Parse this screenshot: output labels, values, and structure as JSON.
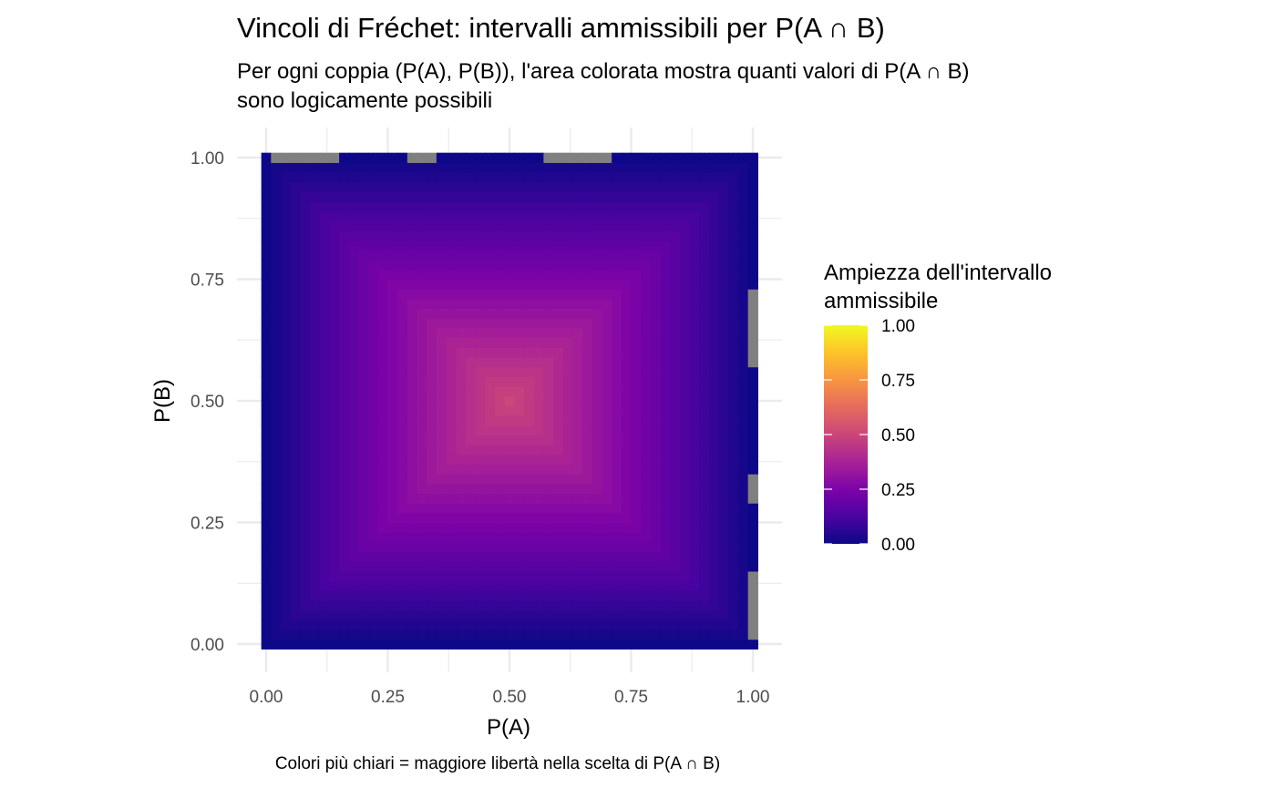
{
  "chart_data": {
    "type": "heatmap",
    "title": "Vincoli di Fréchet: intervalli ammissibili per P(A ∩ B)",
    "subtitle_lines": [
      "Per ogni coppia (P(A), P(B)), l'area colorata mostra quanti valori di P(A ∩ B)",
      "sono logicamente possibili"
    ],
    "xlabel": "P(A)",
    "ylabel": "P(B)",
    "caption": "Colori più chiari = maggiore libertà nella scelta di P(A ∩ B)",
    "xlim": [
      0,
      1
    ],
    "ylim": [
      0,
      1
    ],
    "x_ticks": [
      "0.00",
      "0.25",
      "0.50",
      "0.75",
      "1.00"
    ],
    "y_ticks": [
      "0.00",
      "0.25",
      "0.50",
      "0.75",
      "1.00"
    ],
    "grid": true,
    "grid_step": 0.02,
    "value_formula": "min(P(A), P(B)) - max(0, P(A) + P(B) - 1)",
    "value_range": [
      0,
      0.5
    ],
    "colorscale": "plasma",
    "na_color": "#808080",
    "missing_cells": {
      "top_row_x_ranges": [
        [
          0.02,
          0.14
        ],
        [
          0.3,
          0.34
        ],
        [
          0.58,
          0.7
        ]
      ],
      "right_column_y_ranges": [
        [
          0.58,
          0.72
        ],
        [
          0.3,
          0.34
        ],
        [
          0.02,
          0.14
        ]
      ]
    },
    "legend": {
      "title_lines": [
        "Ampiezza dell'intervallo",
        "ammissibile"
      ],
      "labels": [
        "1.00",
        "0.75",
        "0.50",
        "0.25",
        "0.00"
      ],
      "range": [
        0,
        1
      ],
      "placement": "right"
    }
  }
}
